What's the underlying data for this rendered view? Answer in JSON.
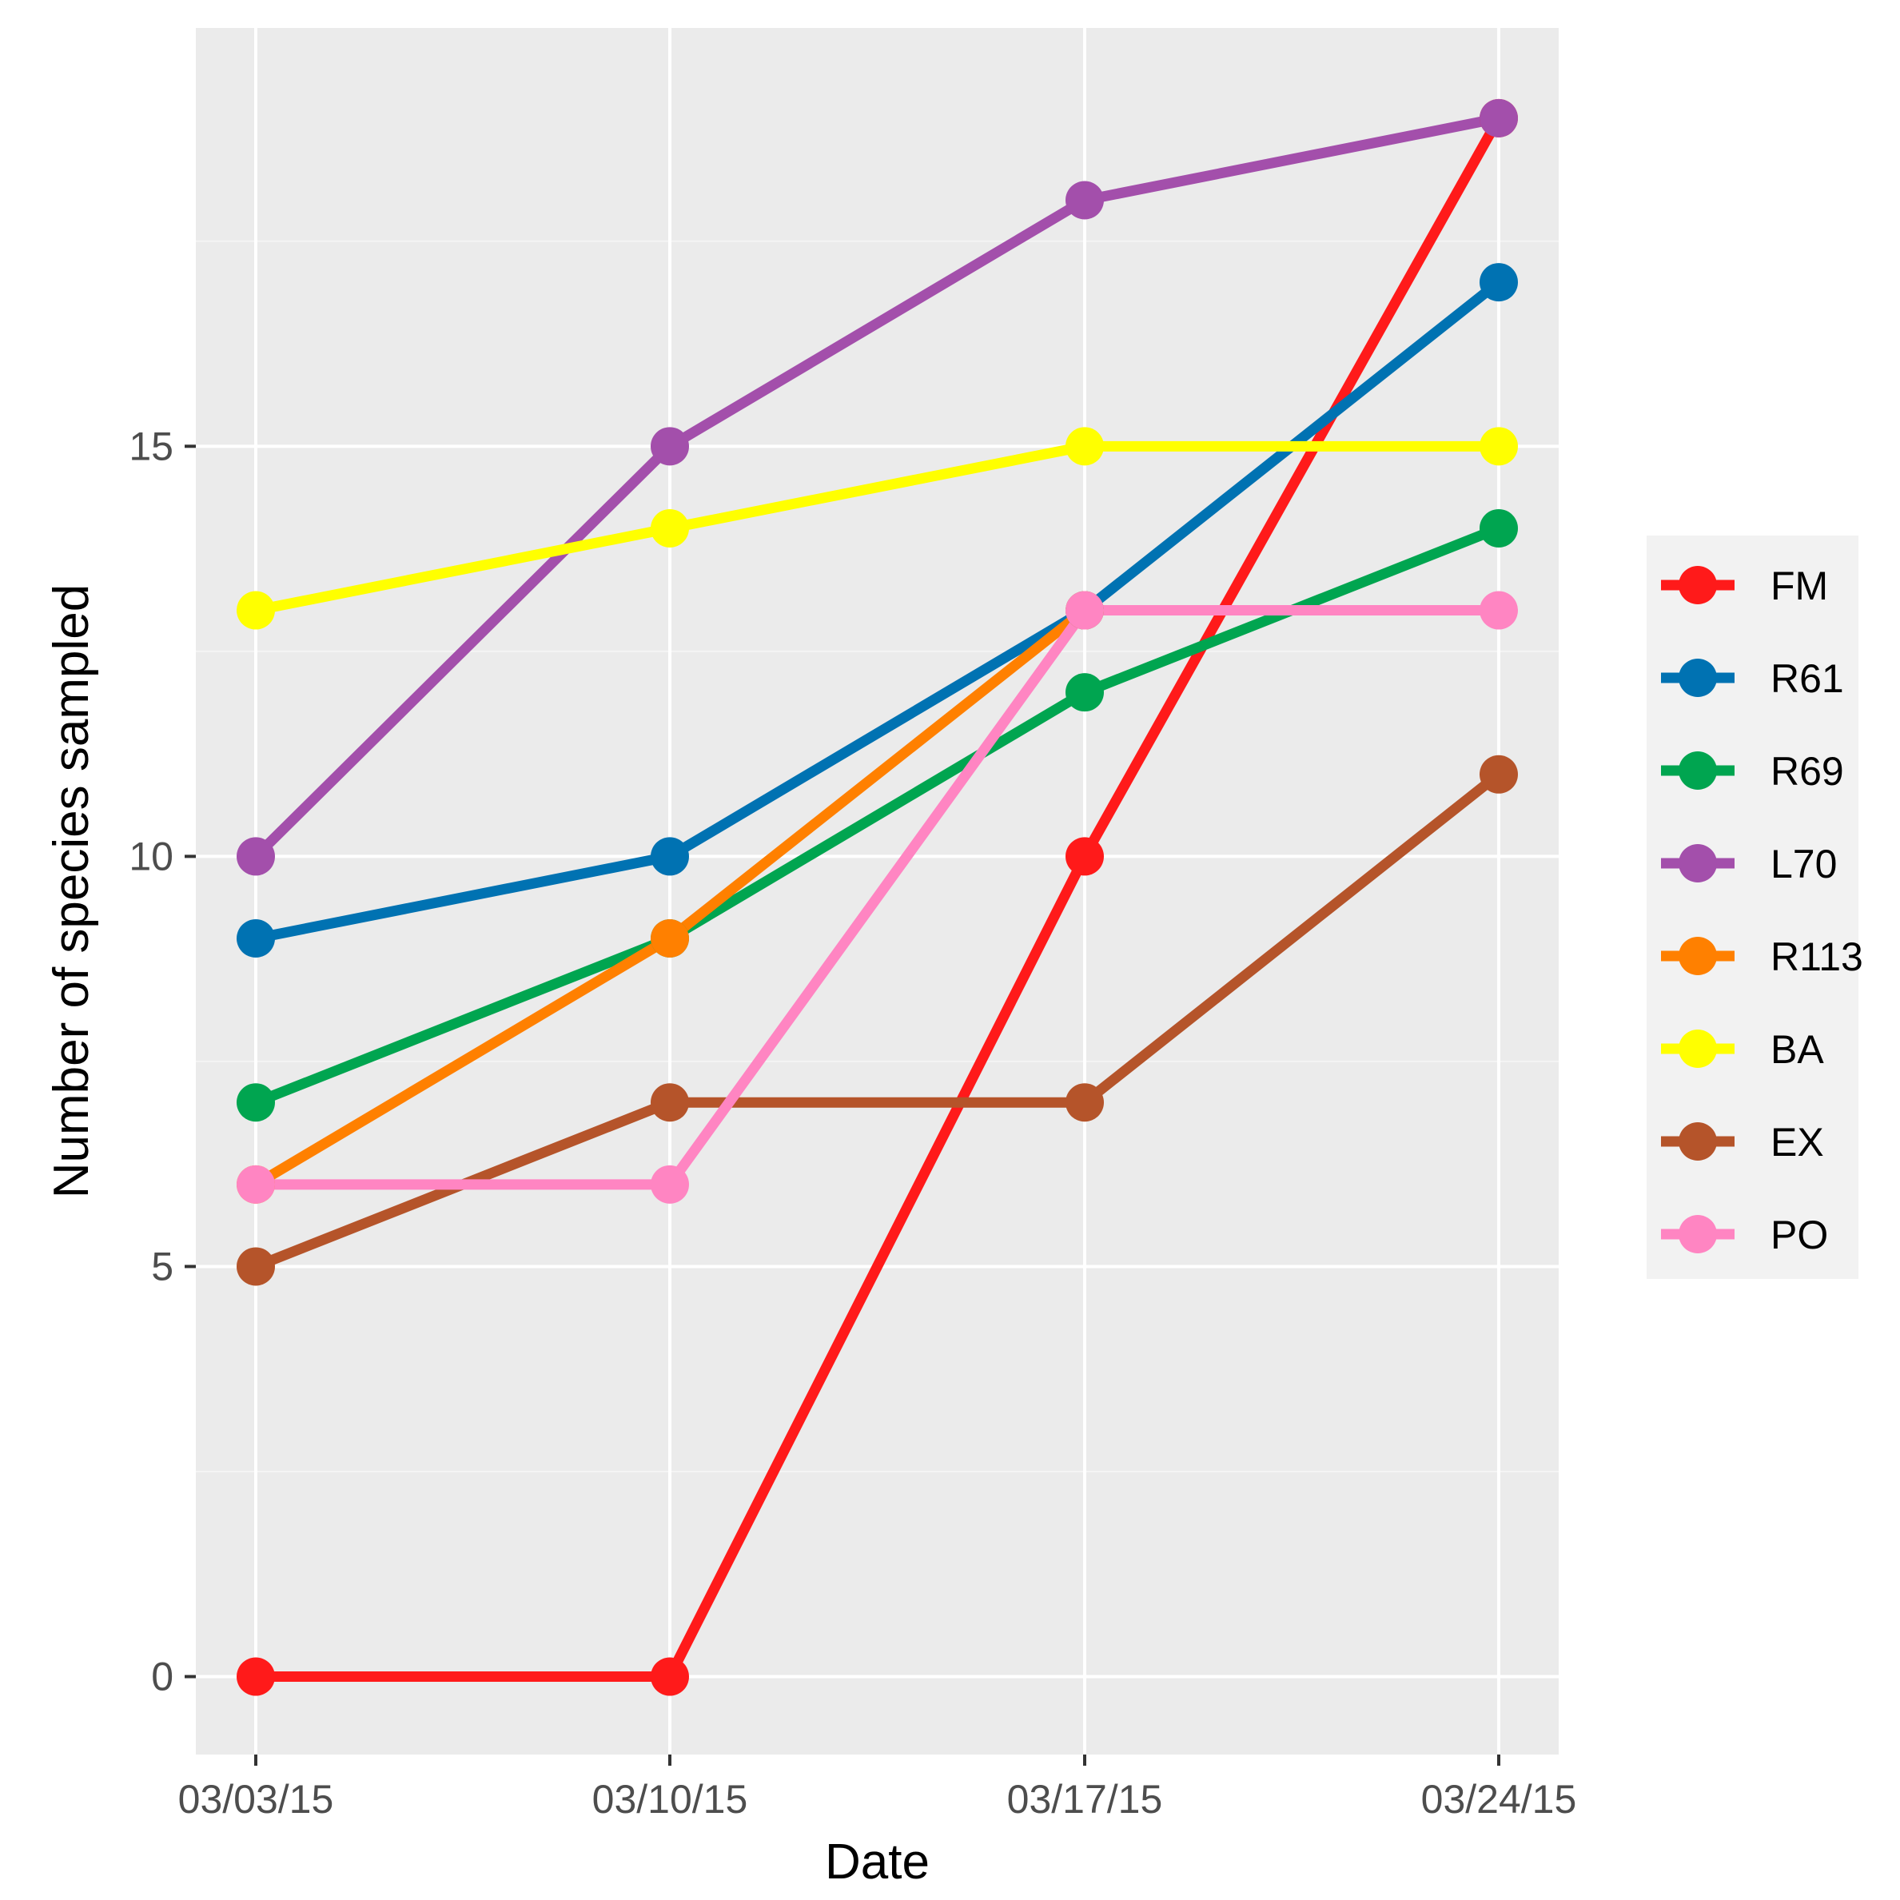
{
  "chart_data": {
    "type": "line",
    "title": "",
    "xlabel": "Date",
    "ylabel": "Number of species sampled",
    "x": [
      "03/03/15",
      "03/10/15",
      "03/17/15",
      "03/24/15"
    ],
    "yticks": [
      0,
      5,
      10,
      15
    ],
    "ylim": [
      -0.95,
      20.1
    ],
    "grid": true,
    "legend_position": "right",
    "series": [
      {
        "name": "FM",
        "color": "#ff1a1a",
        "values": [
          0,
          0,
          10,
          19
        ]
      },
      {
        "name": "R61",
        "color": "#0072b2",
        "values": [
          9,
          10,
          13,
          17
        ]
      },
      {
        "name": "R69",
        "color": "#00a550",
        "values": [
          7,
          9,
          12,
          14
        ]
      },
      {
        "name": "L70",
        "color": "#a34fab",
        "values": [
          10,
          15,
          18,
          19
        ]
      },
      {
        "name": "R113",
        "color": "#ff8000",
        "values": [
          6,
          9,
          13,
          null
        ]
      },
      {
        "name": "BA",
        "color": "#ffff00",
        "values": [
          13,
          14,
          15,
          15
        ]
      },
      {
        "name": "EX",
        "color": "#b5542a",
        "values": [
          5,
          7,
          7,
          11
        ]
      },
      {
        "name": "PO",
        "color": "#ff85c2",
        "values": [
          6,
          6,
          13,
          13
        ]
      }
    ]
  }
}
